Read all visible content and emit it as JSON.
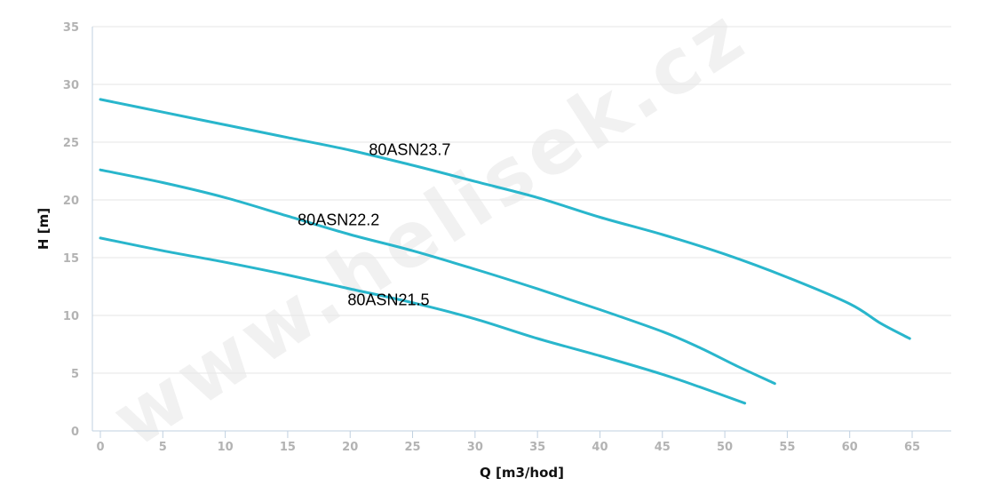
{
  "watermark": "www.helisek.cz",
  "chart_data": {
    "type": "line",
    "xlabel": "Q [m3/hod]",
    "ylabel": "H [m]",
    "xlim": [
      0,
      65
    ],
    "ylim": [
      0,
      35
    ],
    "xticks": [
      "0",
      "5",
      "10",
      "15",
      "20",
      "25",
      "30",
      "35",
      "40",
      "45",
      "50",
      "55",
      "60",
      "65"
    ],
    "yticks": [
      "0",
      "5",
      "10",
      "15",
      "20",
      "25",
      "30",
      "35"
    ],
    "grid": true,
    "line_color": "#29b6cc",
    "series": [
      {
        "name": "80ASN23.7",
        "label_at": [
          21.5,
          23.9
        ],
        "points": [
          [
            0,
            28.7
          ],
          [
            5,
            27.6
          ],
          [
            10,
            26.5
          ],
          [
            15,
            25.4
          ],
          [
            20,
            24.3
          ],
          [
            25,
            23.0
          ],
          [
            30,
            21.6
          ],
          [
            35,
            20.2
          ],
          [
            40,
            18.5
          ],
          [
            45,
            17.0
          ],
          [
            50,
            15.3
          ],
          [
            55,
            13.3
          ],
          [
            60,
            11.0
          ],
          [
            62.5,
            9.3
          ],
          [
            64.8,
            8.0
          ]
        ]
      },
      {
        "name": "80ASN22.2",
        "label_at": [
          15.8,
          17.8
        ],
        "points": [
          [
            0,
            22.6
          ],
          [
            5,
            21.5
          ],
          [
            10,
            20.2
          ],
          [
            15,
            18.6
          ],
          [
            20,
            17.0
          ],
          [
            25,
            15.6
          ],
          [
            30,
            14.0
          ],
          [
            35,
            12.3
          ],
          [
            40,
            10.5
          ],
          [
            45,
            8.6
          ],
          [
            48,
            7.2
          ],
          [
            51,
            5.6
          ],
          [
            54,
            4.1
          ]
        ]
      },
      {
        "name": "80ASN21.5",
        "label_at": [
          19.8,
          10.9
        ],
        "points": [
          [
            0,
            16.7
          ],
          [
            5,
            15.6
          ],
          [
            10,
            14.6
          ],
          [
            15,
            13.5
          ],
          [
            20,
            12.3
          ],
          [
            25,
            11.1
          ],
          [
            30,
            9.7
          ],
          [
            35,
            8.0
          ],
          [
            40,
            6.5
          ],
          [
            45,
            4.9
          ],
          [
            48,
            3.8
          ],
          [
            51.6,
            2.4
          ]
        ]
      }
    ]
  }
}
